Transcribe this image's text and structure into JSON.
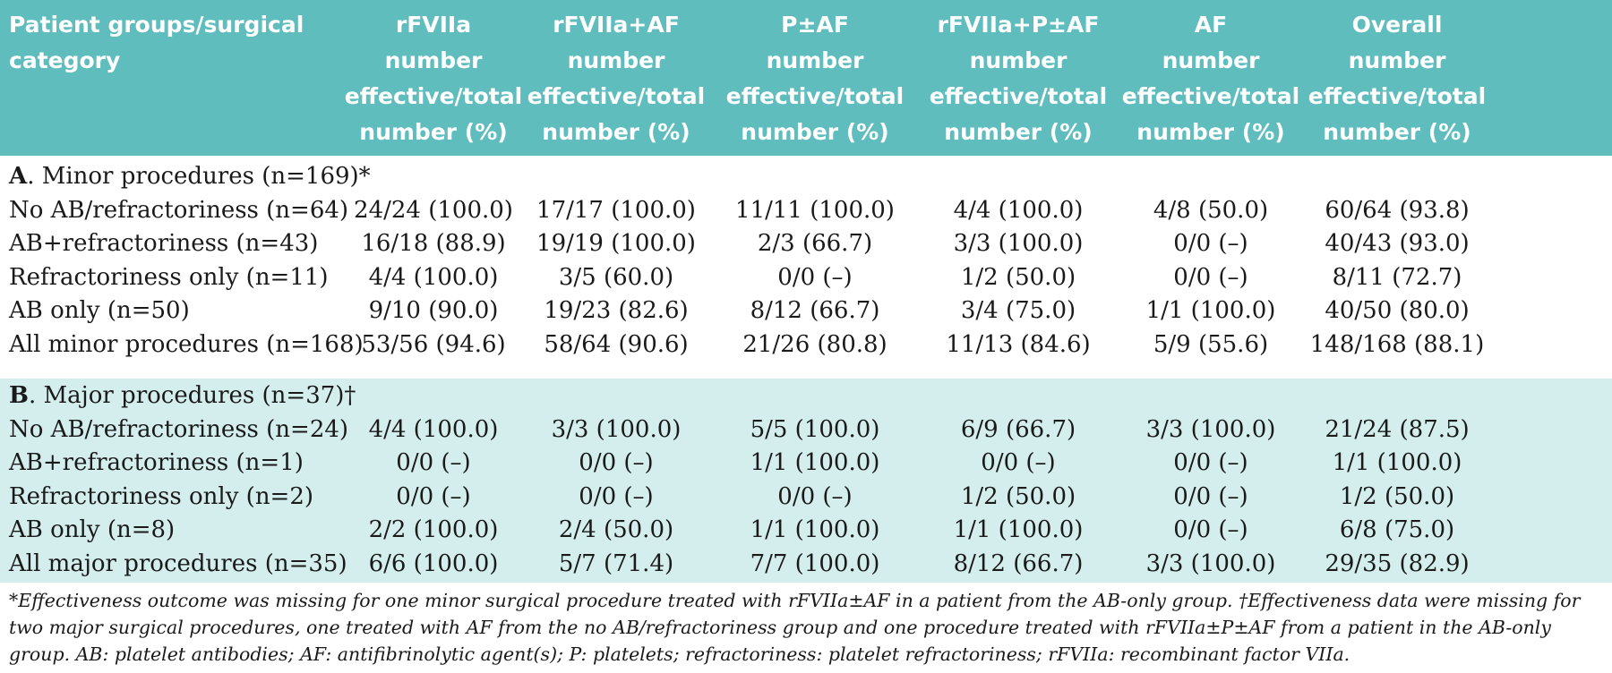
{
  "header": {
    "col0": [
      "Patient groups/surgical",
      "category"
    ],
    "col1": [
      "rFVIIa",
      "number",
      "effective/total",
      "number (%)"
    ],
    "col2": [
      "rFVIIa+AF",
      "number",
      "effective/total",
      "number (%)"
    ],
    "col3": [
      "P±AF",
      "number",
      "effective/total",
      "number (%)"
    ],
    "col4": [
      "rFVIIa+P±AF",
      "number",
      "effective/total",
      "number (%)"
    ],
    "col5": [
      "AF",
      "number",
      "effective/total",
      "number (%)"
    ],
    "col6": [
      "Overall",
      "number",
      "effective/total",
      "number (%)"
    ]
  },
  "sectionA": {
    "letter": "A",
    "title": ". Minor procedures (n=169)*",
    "rows": [
      [
        "No AB/refractoriness (n=64)",
        "24/24 (100.0)",
        "17/17 (100.0)",
        "11/11 (100.0)",
        "4/4 (100.0)",
        "4/8 (50.0)",
        "60/64 (93.8)"
      ],
      [
        "AB+refractoriness (n=43)",
        "16/18 (88.9)",
        "19/19 (100.0)",
        "2/3 (66.7)",
        "3/3 (100.0)",
        "0/0 (–)",
        "40/43 (93.0)"
      ],
      [
        "Refractoriness only (n=11)",
        "4/4 (100.0)",
        "3/5 (60.0)",
        "0/0 (–)",
        "1/2 (50.0)",
        "0/0 (–)",
        "8/11 (72.7)"
      ],
      [
        "AB only (n=50)",
        "9/10 (90.0)",
        "19/23 (82.6)",
        "8/12 (66.7)",
        "3/4 (75.0)",
        "1/1 (100.0)",
        "40/50 (80.0)"
      ],
      [
        "All minor procedures (n=168)",
        "53/56 (94.6)",
        "58/64 (90.6)",
        "21/26 (80.8)",
        "11/13 (84.6)",
        "5/9 (55.6)",
        "148/168 (88.1)"
      ]
    ]
  },
  "sectionB": {
    "letter": "B",
    "title": ". Major procedures (n=37)†",
    "rows": [
      [
        "No AB/refractoriness (n=24)",
        "4/4 (100.0)",
        "3/3 (100.0)",
        "5/5 (100.0)",
        "6/9 (66.7)",
        "3/3 (100.0)",
        "21/24 (87.5)"
      ],
      [
        "AB+refractoriness (n=1)",
        "0/0 (–)",
        "0/0 (–)",
        "1/1 (100.0)",
        "0/0 (–)",
        "0/0 (–)",
        "1/1 (100.0)"
      ],
      [
        "Refractoriness only (n=2)",
        "0/0 (–)",
        "0/0 (–)",
        "0/0 (–)",
        "1/2 (50.0)",
        "0/0 (–)",
        "1/2 (50.0)"
      ],
      [
        "AB only (n=8)",
        "2/2 (100.0)",
        "2/4 (50.0)",
        "1/1 (100.0)",
        "1/1 (100.0)",
        "0/0 (–)",
        "6/8 (75.0)"
      ],
      [
        "All major procedures (n=35)",
        "6/6 (100.0)",
        "5/7 (71.4)",
        "7/7 (100.0)",
        "8/12 (66.7)",
        "3/3 (100.0)",
        "29/35 (82.9)"
      ]
    ]
  },
  "footnote": "*Effectiveness outcome was missing for one minor surgical procedure treated with rFVIIa±AF in a patient from the AB-only group. †Effectiveness data were missing for two major surgical procedures, one treated with AF from the no AB/refractoriness group and one procedure treated with rFVIIa±P±AF from a patient in the AB-only group. AB: platelet antibodies; AF: antifibrinolytic agent(s); P: platelets; refractoriness: platelet refractoriness; rFVIIa: recombinant factor VIIa."
}
